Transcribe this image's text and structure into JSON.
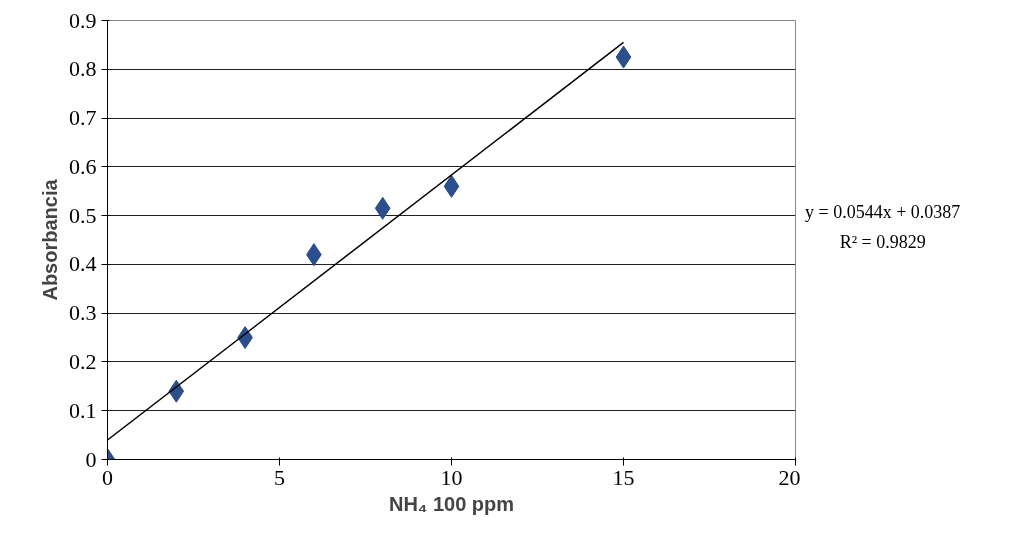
{
  "chart_data": {
    "type": "scatter",
    "xlabel": "NH₄ 100 ppm",
    "ylabel": "Absorbancia",
    "series": [
      {
        "color": "#2b4f8a",
        "marker": "diamond",
        "x": [
          0,
          2,
          4,
          6,
          8,
          10,
          15
        ],
        "values": [
          0,
          0.14,
          0.25,
          0.42,
          0.515,
          0.56,
          0.825
        ]
      },
      {
        "type": "line",
        "color": "#000000",
        "marker": "none",
        "x": [
          0,
          15
        ],
        "values": [
          0.04,
          0.855
        ]
      }
    ],
    "xlim": [
      0,
      20
    ],
    "xticks": [
      0,
      5,
      10,
      15,
      20
    ],
    "ylim": [
      0,
      0.9
    ],
    "yticks": [
      0,
      0.1,
      0.2,
      0.3,
      0.4,
      0.5,
      0.6,
      0.7,
      0.8,
      0.9
    ],
    "grid": "y",
    "annotations": [
      "y = 0.0544x + 0.0387",
      "R² = 0.9829"
    ]
  }
}
